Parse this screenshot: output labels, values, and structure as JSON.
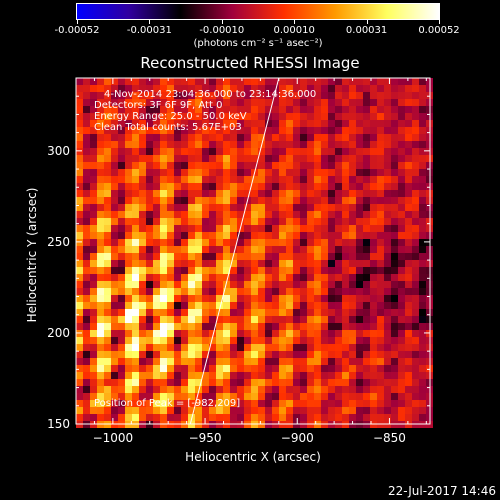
{
  "colorbar": {
    "tick_labels": [
      "-0.00052",
      "-0.00031",
      "-0.00010",
      "0.00010",
      "0.00031",
      "0.00052"
    ],
    "units": "(photons cm⁻² s⁻¹ asec⁻²)",
    "colormap": [
      "#0000ff",
      "#3000a0",
      "#000000",
      "#a0003c",
      "#ff3000",
      "#ff9a00",
      "#ffff60",
      "#ffffff"
    ]
  },
  "title": "Reconstructed RHESSI Image",
  "info_lines": {
    "time": "4-Nov-2014 23:04:36.000 to 23:14:36.000",
    "detectors": "Detectors: 3F 6F 9F, Att 0",
    "energy": "Energy Range: 25.0 - 50.0 keV",
    "method": "Clean     Total counts: 5.67E+03"
  },
  "peak_label": "Position of Peak = [-982,209]",
  "timestamp": "22-Jul-2017 14:46",
  "chart_data": {
    "type": "heatmap",
    "title": "Reconstructed RHESSI Image",
    "xlabel": "Heliocentric X (arcsec)",
    "ylabel": "Heliocentric Y (arcsec)",
    "xlim": [
      -1020,
      -828
    ],
    "ylim": [
      150,
      340
    ],
    "x_ticks": [
      -1000,
      -950,
      -900,
      -850
    ],
    "x_tick_labels": [
      "−1000",
      "−950",
      "−900",
      "−850"
    ],
    "y_ticks": [
      150,
      200,
      250,
      300
    ],
    "y_tick_labels": [
      "150",
      "200",
      "250",
      "300"
    ],
    "color_range": [
      -0.00052,
      0.00052
    ],
    "peak_position": [
      -982,
      209
    ],
    "limb_line": [
      [
        -958,
        150
      ],
      [
        -910,
        340
      ]
    ],
    "grid": false
  }
}
